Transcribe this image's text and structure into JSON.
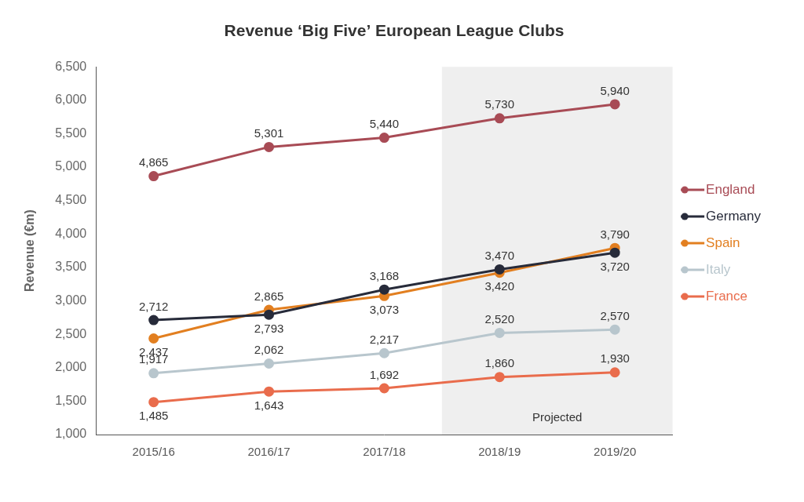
{
  "chart_data": {
    "type": "line",
    "title": "Revenue ‘Big Five’ European League Clubs",
    "y_label": "Revenue (€m)",
    "categories": [
      "2015/16",
      "2016/17",
      "2017/18",
      "2018/19",
      "2019/20"
    ],
    "series": [
      {
        "name": "England",
        "color": "#a84b55",
        "values": [
          4865,
          5301,
          5440,
          5730,
          5940
        ],
        "value_labels": [
          "4,865",
          "5,301",
          "5,440",
          "5,730",
          "5,940"
        ]
      },
      {
        "name": "Germany",
        "color": "#272b3a",
        "values": [
          2712,
          2793,
          3168,
          3470,
          3720
        ],
        "value_labels": [
          "2,712",
          "2,793",
          "3,168",
          "3,470",
          "3,720"
        ]
      },
      {
        "name": "Spain",
        "color": "#e27f20",
        "values": [
          2437,
          2865,
          3073,
          3420,
          3790
        ],
        "value_labels": [
          "2,437",
          "2,865",
          "3,073",
          "3,420",
          "3,790"
        ]
      },
      {
        "name": "Italy",
        "color": "#b8c6cd",
        "values": [
          1917,
          2062,
          2217,
          2520,
          2570
        ],
        "value_labels": [
          "1,917",
          "2,062",
          "2,217",
          "2,520",
          "2,570"
        ]
      },
      {
        "name": "France",
        "color": "#e96c4c",
        "values": [
          1485,
          1643,
          1692,
          1860,
          1930
        ],
        "value_labels": [
          "1,485",
          "1,643",
          "1,692",
          "1,860",
          "1,930"
        ]
      }
    ],
    "ylim": [
      1000,
      6500
    ],
    "yticks": [
      {
        "value": 1000,
        "label": "1,000"
      },
      {
        "value": 1500,
        "label": "1,500"
      },
      {
        "value": 2000,
        "label": "2,000"
      },
      {
        "value": 2500,
        "label": "2,500"
      },
      {
        "value": 3000,
        "label": "3,000"
      },
      {
        "value": 3500,
        "label": "3,500"
      },
      {
        "value": 4000,
        "label": "4,000"
      },
      {
        "value": 4500,
        "label": "4,500"
      },
      {
        "value": 5000,
        "label": "5,000"
      },
      {
        "value": 5500,
        "label": "5,500"
      },
      {
        "value": 6000,
        "label": "6,000"
      },
      {
        "value": 6500,
        "label": "6,500"
      }
    ],
    "grid": false,
    "legend": "right",
    "data_labels": true,
    "marker": "circle",
    "annotations": [
      {
        "text": "Projected",
        "x_start": "2018/19",
        "x_end": "2019/20"
      }
    ]
  }
}
